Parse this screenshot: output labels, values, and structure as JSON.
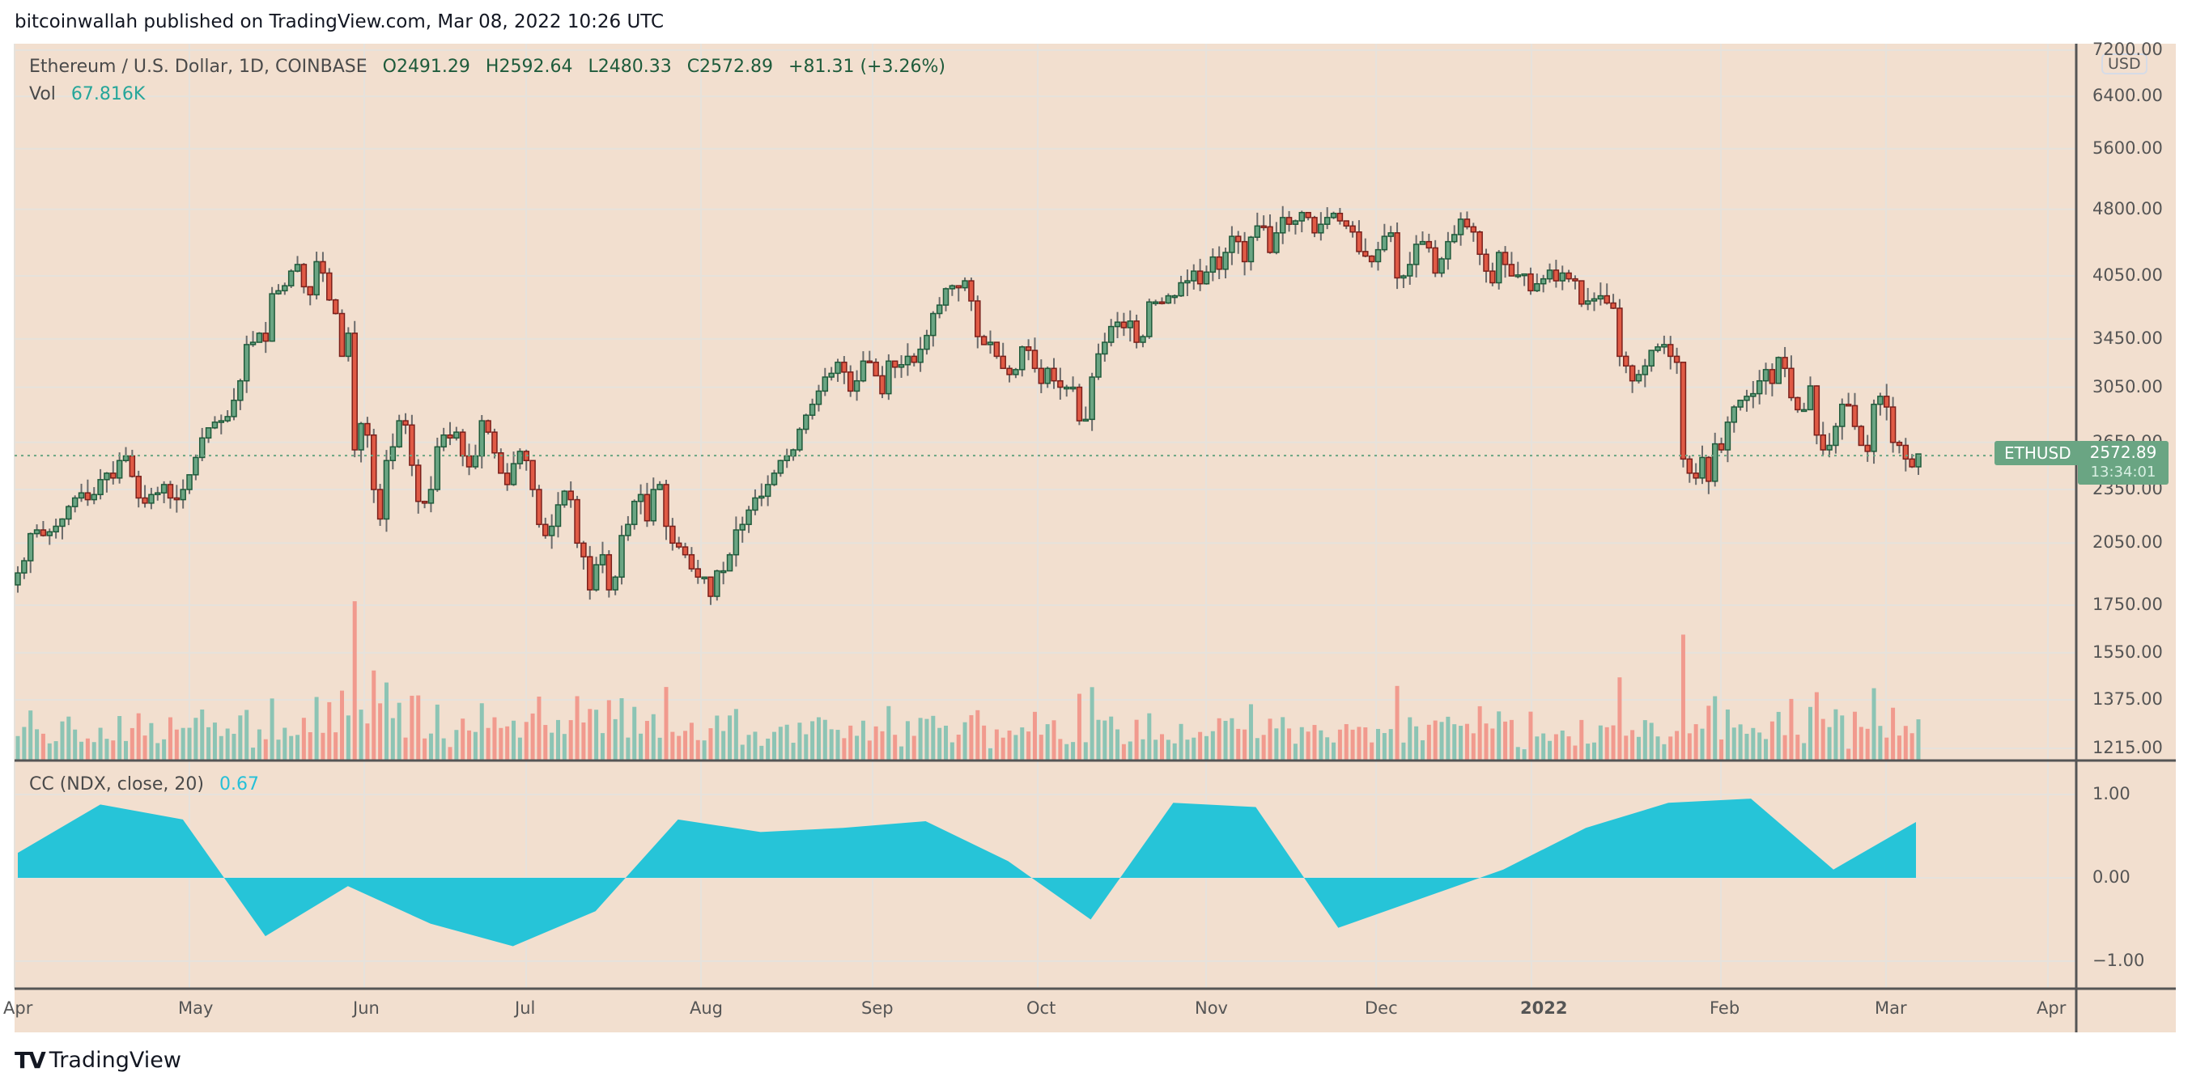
{
  "header": {
    "publisher_line": "bitcoinwallah published on TradingView.com, Mar 08, 2022 10:26 UTC"
  },
  "legend": {
    "symbol": "Ethereum / U.S. Dollar, 1D, COINBASE",
    "open": "O2491.29",
    "high": "H2592.64",
    "low": "L2480.33",
    "close": "C2572.89",
    "change": "+81.31 (+3.26%)",
    "vol_label": "Vol",
    "vol_value": "67.816K"
  },
  "indicator": {
    "label": "CC (NDX, close, 20)",
    "value": "0.67"
  },
  "price_axis": {
    "currency": "USD",
    "ticks": [
      "7200.00",
      "6400.00",
      "5600.00",
      "4800.00",
      "4050.00",
      "3450.00",
      "3050.00",
      "2650.00",
      "2350.00",
      "2050.00",
      "1750.00",
      "1550.00",
      "1375.00",
      "1215.00"
    ]
  },
  "indicator_axis": {
    "ticks": [
      "1.00",
      "0.00",
      "−1.00"
    ]
  },
  "last_price": {
    "symbol_tag": "ETHUSD",
    "price": "2572.89",
    "countdown": "13:34:01"
  },
  "time_axis": {
    "labels": [
      "Apr",
      "May",
      "Jun",
      "Jul",
      "Aug",
      "Sep",
      "Oct",
      "Nov",
      "Dec",
      "2022",
      "Feb",
      "Mar",
      "Apr"
    ]
  },
  "branding": {
    "logo_text": "TradingView"
  },
  "colors": {
    "background": "#f2dfcf",
    "up_body": "#6aa583",
    "up_border": "#1f5a3a",
    "down_body": "#e05a45",
    "down_border": "#7a1f1a",
    "vol_up": "#8cc4b4",
    "vol_down": "#f19a8e",
    "cc_fill": "#26c4d8",
    "grid": "#e6e2dc",
    "axis": "#555555"
  },
  "chart_data": [
    {
      "type": "candlestick",
      "title": "Ethereum / U.S. Dollar, 1D, COINBASE",
      "x_range": [
        "2021-04-01",
        "2022-03-08"
      ],
      "yscale": "log",
      "ylim": [
        1215,
        7200
      ],
      "last": {
        "open": 2491.29,
        "high": 2592.64,
        "low": 2480.33,
        "close": 2572.89,
        "change": 81.31,
        "change_pct": 3.26
      },
      "approx_monthly_closes": {
        "categories": [
          "Apr",
          "May",
          "Jun",
          "Jul",
          "Aug",
          "Sep",
          "Oct",
          "Nov",
          "Dec",
          "Jan 2022",
          "Feb",
          "Mar"
        ],
        "values": [
          2100,
          2700,
          2600,
          2300,
          2550,
          3400,
          3000,
          4300,
          4600,
          3700,
          2700,
          2950
        ]
      },
      "key_points": [
        {
          "label": "May high",
          "value": 4380
        },
        {
          "label": "May/Jun low",
          "value": 1750
        },
        {
          "label": "Jul low",
          "value": 1720
        },
        {
          "label": "Sep high",
          "value": 4020
        },
        {
          "label": "Nov ATH",
          "value": 4860
        },
        {
          "label": "Jan low",
          "value": 2160
        },
        {
          "label": "Feb high",
          "value": 3280
        },
        {
          "label": "Mar 08 close",
          "value": 2572.89
        }
      ]
    },
    {
      "type": "area",
      "title": "CC (NDX, close, 20)",
      "ylim": [
        -1.2,
        1.2
      ],
      "last_value": 0.67,
      "approx_series": {
        "x": [
          "Apr",
          "mid-Apr",
          "May",
          "mid-May",
          "Jun",
          "mid-Jun",
          "Jul",
          "mid-Jul",
          "Aug",
          "mid-Aug",
          "Sep",
          "mid-Sep",
          "Oct",
          "mid-Oct",
          "Nov",
          "mid-Nov",
          "Dec",
          "mid-Dec",
          "Jan",
          "mid-Jan",
          "Feb",
          "mid-Feb",
          "Mar",
          "Mar 08"
        ],
        "values": [
          0.3,
          0.88,
          0.7,
          -0.7,
          -0.1,
          -0.55,
          -0.82,
          -0.4,
          0.7,
          0.55,
          0.6,
          0.68,
          0.2,
          -0.5,
          0.9,
          0.85,
          -0.6,
          -0.25,
          0.1,
          0.6,
          0.9,
          0.95,
          0.1,
          0.67
        ]
      }
    },
    {
      "type": "bar",
      "title": "Vol",
      "last_value": "67.816K"
    }
  ],
  "series": {
    "closes": [
      1900,
      1960,
      2100,
      2120,
      2090,
      2110,
      2140,
      2180,
      2250,
      2300,
      2330,
      2290,
      2320,
      2410,
      2450,
      2420,
      2530,
      2560,
      2430,
      2300,
      2270,
      2320,
      2330,
      2380,
      2300,
      2290,
      2350,
      2440,
      2550,
      2680,
      2750,
      2790,
      2800,
      2830,
      2950,
      3100,
      3400,
      3420,
      3500,
      3430,
      3870,
      3900,
      3950,
      4100,
      4170,
      3940,
      3860,
      4200,
      4080,
      3810,
      3680,
      3300,
      3500,
      2600,
      2780,
      2700,
      2350,
      2180,
      2530,
      2620,
      2800,
      2770,
      2500,
      2280,
      2270,
      2350,
      2620,
      2700,
      2680,
      2720,
      2560,
      2490,
      2560,
      2800,
      2720,
      2580,
      2450,
      2380,
      2510,
      2590,
      2530,
      2350,
      2150,
      2090,
      2140,
      2260,
      2340,
      2290,
      2050,
      1980,
      1820,
      1940,
      1990,
      1820,
      1880,
      2090,
      2150,
      2280,
      2320,
      2170,
      2350,
      2380,
      2140,
      2050,
      2030,
      1990,
      1920,
      1880,
      1880,
      1790,
      1910,
      1910,
      1990,
      2120,
      2150,
      2230,
      2300,
      2310,
      2380,
      2450,
      2530,
      2560,
      2600,
      2740,
      2840,
      2920,
      3020,
      3130,
      3160,
      3250,
      3170,
      3020,
      3100,
      3260,
      3250,
      3140,
      3000,
      3260,
      3210,
      3230,
      3300,
      3250,
      3360,
      3480,
      3680,
      3760,
      3920,
      3950,
      3930,
      4000,
      3800,
      3470,
      3400,
      3420,
      3300,
      3200,
      3150,
      3190,
      3380,
      3350,
      3200,
      3080,
      3200,
      3100,
      3050,
      3050,
      3050,
      2800,
      2810,
      3130,
      3320,
      3420,
      3560,
      3600,
      3550,
      3610,
      3420,
      3470,
      3790,
      3790,
      3780,
      3850,
      3850,
      3980,
      4000,
      4100,
      3970,
      4090,
      4250,
      4120,
      4300,
      4480,
      4420,
      4200,
      4470,
      4600,
      4590,
      4300,
      4520,
      4700,
      4620,
      4660,
      4760,
      4700,
      4520,
      4620,
      4700,
      4750,
      4660,
      4600,
      4530,
      4310,
      4260,
      4200,
      4330,
      4480,
      4520,
      4030,
      4050,
      4170,
      4390,
      4420,
      4350,
      4080,
      4230,
      4420,
      4500,
      4680,
      4590,
      4530,
      4280,
      4100,
      3980,
      4300,
      4170,
      4050,
      4060,
      4070,
      3900,
      3970,
      4020,
      4110,
      4000,
      4080,
      4020,
      4000,
      3770,
      3800,
      3820,
      3850,
      3780,
      3730,
      3300,
      3220,
      3100,
      3150,
      3220,
      3350,
      3380,
      3400,
      3300,
      3250,
      2540,
      2450,
      2420,
      2550,
      2400,
      2640,
      2600,
      2790,
      2900,
      2950,
      2980,
      3000,
      3100,
      3190,
      3080,
      3290,
      3200,
      2970,
      2880,
      2880,
      3060,
      2700,
      2600,
      2630,
      2760,
      2920,
      2910,
      2760,
      2630,
      2590,
      2920,
      2980,
      2900,
      2650,
      2630,
      2540,
      2490,
      2573
    ]
  }
}
